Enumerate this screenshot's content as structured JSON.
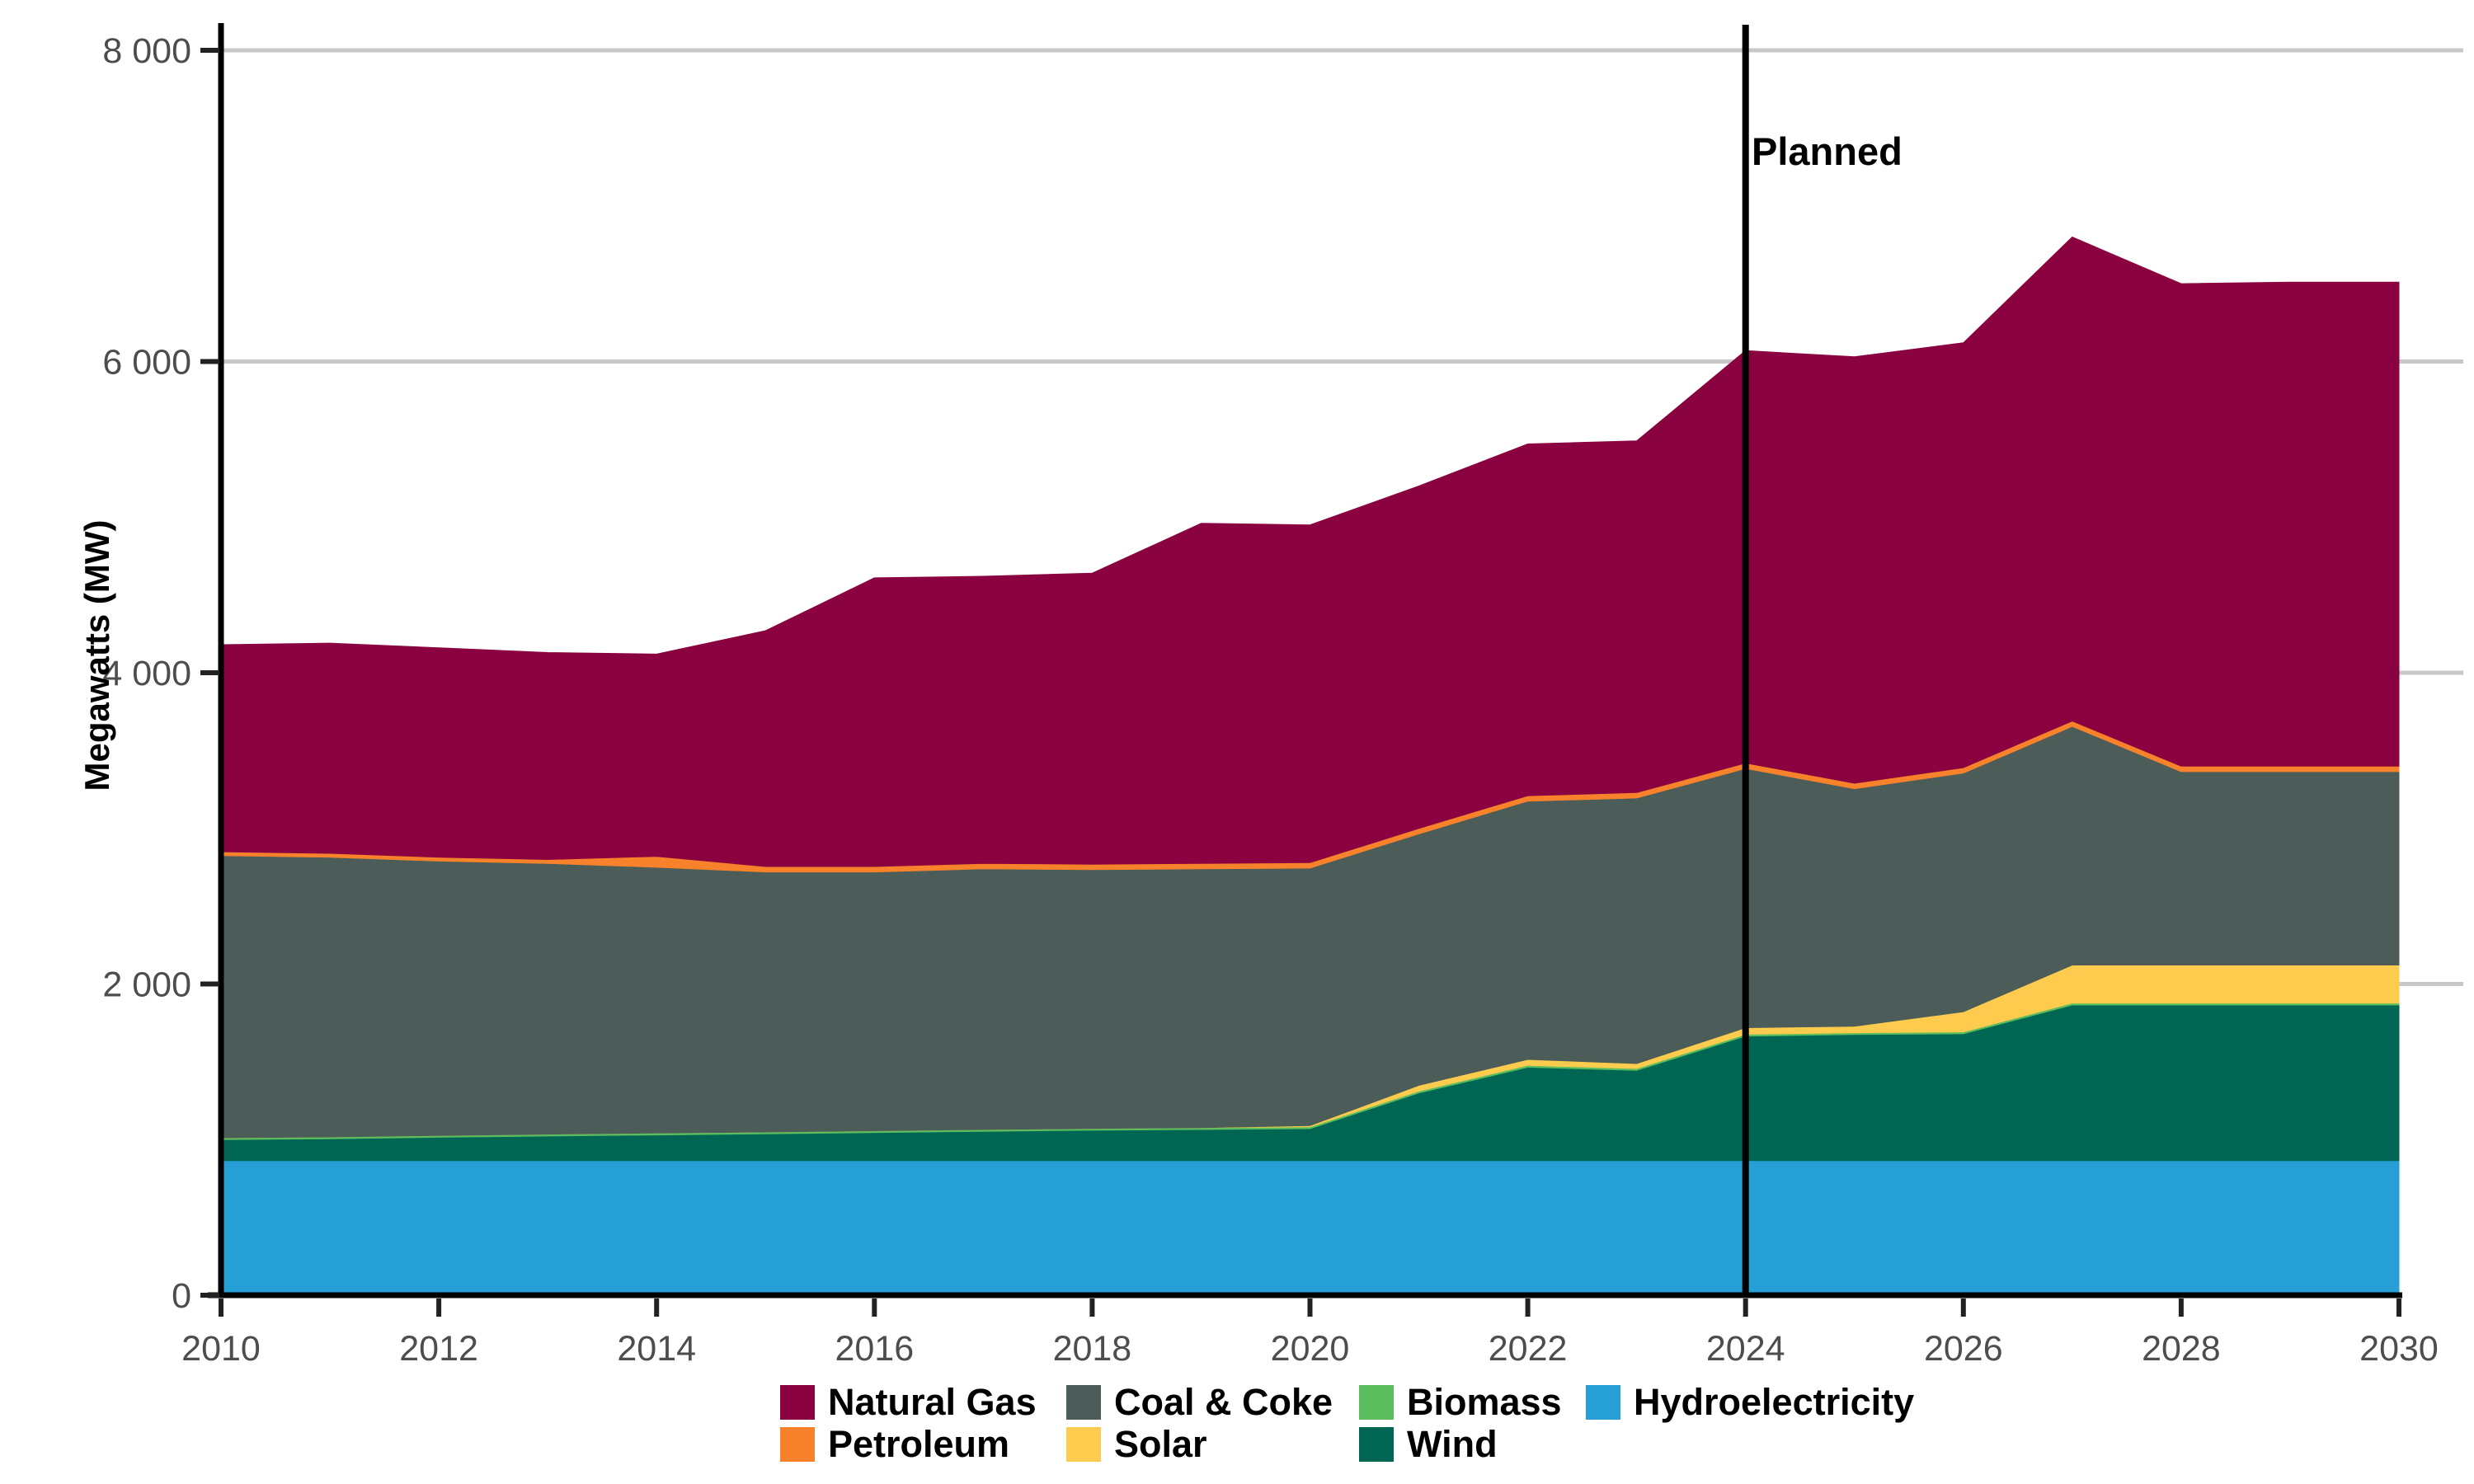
{
  "chart_data": {
    "type": "area",
    "stacked": true,
    "title": "",
    "xlabel": "",
    "ylabel": "Megawatts (MW)",
    "xlim": [
      2010,
      2030
    ],
    "ylim": [
      0,
      8000
    ],
    "grid": "horizontal-major",
    "grid_color": "#C8C8C8",
    "axis_color": "#000000",
    "tick_label_color": "#4D4D4D",
    "legend_position": "bottom",
    "x": [
      2010,
      2011,
      2012,
      2013,
      2014,
      2015,
      2016,
      2017,
      2018,
      2019,
      2020,
      2021,
      2022,
      2023,
      2024,
      2025,
      2026,
      2027,
      2028,
      2029,
      2030
    ],
    "x_ticks": {
      "values": [
        2010,
        2012,
        2014,
        2016,
        2018,
        2020,
        2022,
        2024,
        2026,
        2028,
        2030
      ],
      "labels": [
        "2010",
        "2012",
        "2014",
        "2016",
        "2018",
        "2020",
        "2022",
        "2024",
        "2026",
        "2028",
        "2030"
      ]
    },
    "y_ticks": {
      "values": [
        0,
        2000,
        4000,
        6000,
        8000
      ],
      "labels": [
        "0",
        "2 000",
        "4 000",
        "6 000",
        "8 000"
      ]
    },
    "annotation": {
      "label": "Planned",
      "x": 2024
    },
    "series": [
      {
        "name": "Hydroelectricity",
        "color": "#259FD5",
        "values": [
          865,
          865,
          865,
          865,
          865,
          865,
          865,
          865,
          865,
          865,
          865,
          865,
          865,
          865,
          865,
          865,
          865,
          865,
          865,
          865,
          865
        ]
      },
      {
        "name": "Wind",
        "color": "#006654",
        "values": [
          135,
          140,
          150,
          158,
          165,
          172,
          180,
          188,
          195,
          200,
          205,
          435,
          600,
          580,
          800,
          810,
          815,
          1000,
          1000,
          1000,
          1000
        ]
      },
      {
        "name": "Biomass",
        "color": "#5BBD5E",
        "values": [
          12,
          12,
          12,
          12,
          12,
          12,
          12,
          12,
          12,
          12,
          12,
          12,
          12,
          12,
          12,
          12,
          12,
          12,
          12,
          12,
          12
        ]
      },
      {
        "name": "Solar",
        "color": "#FDCB4D",
        "values": [
          0,
          0,
          0,
          0,
          0,
          0,
          0,
          0,
          0,
          0,
          8,
          37,
          38,
          32,
          42,
          42,
          130,
          245,
          245,
          245,
          245
        ]
      },
      {
        "name": "Coal & Coke",
        "color": "#4C5C58",
        "values": [
          1813,
          1798,
          1763,
          1740,
          1708,
          1671,
          1663,
          1675,
          1663,
          1663,
          1655,
          1616,
          1660,
          1706,
          1666,
          1526,
          1533,
          1533,
          1243,
          1243,
          1243
        ]
      },
      {
        "name": "Petroleum",
        "color": "#F8822B",
        "values": [
          25,
          25,
          25,
          25,
          70,
          35,
          35,
          35,
          35,
          35,
          35,
          35,
          35,
          35,
          35,
          35,
          35,
          35,
          35,
          35,
          35
        ]
      },
      {
        "name": "Natural Gas",
        "color": "#8A023F",
        "values": [
          1330,
          1350,
          1345,
          1330,
          1300,
          1515,
          1855,
          1845,
          1870,
          2185,
          2170,
          2200,
          2260,
          2260,
          2650,
          2740,
          2730,
          3110,
          3100,
          3110,
          3110
        ]
      }
    ],
    "totals": [
      4180,
      4190,
      4160,
      4130,
      4120,
      4270,
      4610,
      4620,
      4640,
      4960,
      4950,
      5200,
      5470,
      5490,
      6070,
      6030,
      6120,
      6800,
      6500,
      6510,
      6510
    ],
    "legend_rows": [
      [
        "Natural Gas",
        "Coal & Coke",
        "Biomass",
        "Hydroelectricity"
      ],
      [
        "Petroleum",
        "Solar",
        "Wind"
      ]
    ]
  }
}
